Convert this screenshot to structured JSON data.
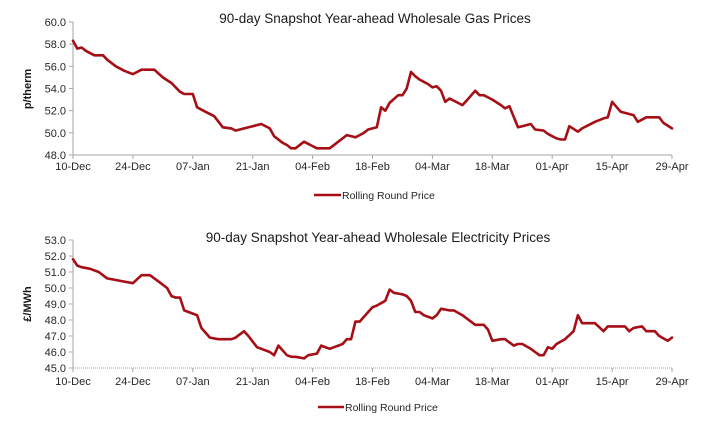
{
  "chart_data": [
    {
      "type": "line",
      "title": "90-day Snapshot Year-ahead Wholesale Gas Prices",
      "xlabel": "",
      "ylabel": "p/therm",
      "ylim": [
        48.0,
        60.0
      ],
      "yticks": [
        "48.0",
        "50.0",
        "52.0",
        "54.0",
        "56.0",
        "58.0",
        "60.0"
      ],
      "xticks": [
        "10-Dec",
        "24-Dec",
        "07-Jan",
        "21-Jan",
        "04-Feb",
        "18-Feb",
        "04-Mar",
        "18-Mar",
        "01-Apr",
        "15-Apr",
        "29-Apr"
      ],
      "x_range_days": [
        0,
        140
      ],
      "grid": false,
      "legend": "bottom",
      "series": [
        {
          "name": "Rolling Round Price",
          "color": "#a50f15",
          "x": [
            0,
            1,
            2,
            3,
            5,
            7,
            8,
            10,
            12,
            14,
            16,
            17,
            19,
            21,
            23,
            25,
            26,
            28,
            29,
            31,
            33,
            35,
            37,
            38,
            40,
            42,
            44,
            46,
            47,
            49,
            50,
            51,
            52,
            54,
            56,
            57,
            58,
            60,
            62,
            64,
            66,
            67,
            68,
            69,
            71,
            72,
            73,
            74,
            76,
            77,
            78,
            79,
            80,
            81,
            83,
            84,
            85,
            86,
            87,
            88,
            90,
            91,
            92,
            94,
            95,
            96,
            97,
            98,
            100,
            101,
            102,
            104,
            105,
            107,
            108,
            110,
            111,
            112,
            113,
            114,
            115,
            116,
            118,
            119,
            120,
            122,
            124,
            125,
            126,
            128,
            129,
            131,
            132,
            134,
            136,
            137,
            138,
            140
          ],
          "values": [
            58.3,
            57.6,
            57.7,
            57.4,
            57.0,
            57.0,
            56.6,
            56.0,
            55.6,
            55.3,
            55.7,
            55.7,
            55.7,
            55.0,
            54.5,
            53.7,
            53.5,
            53.5,
            52.3,
            51.9,
            51.5,
            50.5,
            50.4,
            50.2,
            50.4,
            50.6,
            50.8,
            50.4,
            49.7,
            49.1,
            48.9,
            48.6,
            48.6,
            49.2,
            48.8,
            48.6,
            48.6,
            48.6,
            49.2,
            49.8,
            49.6,
            49.8,
            50.0,
            50.3,
            50.5,
            52.3,
            52.0,
            52.7,
            53.4,
            53.4,
            54.0,
            55.5,
            55.1,
            54.8,
            54.4,
            54.1,
            54.2,
            53.8,
            52.8,
            53.1,
            52.7,
            52.5,
            52.9,
            53.8,
            53.4,
            53.4,
            53.2,
            53.0,
            52.5,
            52.2,
            52.4,
            50.5,
            50.6,
            50.8,
            50.3,
            50.2,
            49.9,
            49.7,
            49.5,
            49.4,
            49.4,
            50.6,
            50.1,
            50.4,
            50.6,
            51.0,
            51.3,
            51.4,
            52.8,
            51.9,
            51.8,
            51.6,
            51.0,
            51.4,
            51.4,
            51.4,
            50.9,
            50.4
          ]
        }
      ]
    },
    {
      "type": "line",
      "title": "90-day Snapshot Year-ahead Wholesale Electricity Prices",
      "xlabel": "",
      "ylabel": "£/MWh",
      "ylim": [
        45.0,
        53.0
      ],
      "yticks": [
        "45.0",
        "46.0",
        "47.0",
        "48.0",
        "49.0",
        "50.0",
        "51.0",
        "52.0",
        "53.0"
      ],
      "xticks": [
        "10-Dec",
        "24-Dec",
        "07-Jan",
        "21-Jan",
        "04-Feb",
        "18-Feb",
        "04-Mar",
        "18-Mar",
        "01-Apr",
        "15-Apr",
        "29-Apr"
      ],
      "x_range_days": [
        0,
        140
      ],
      "grid": false,
      "legend": "bottom",
      "series": [
        {
          "name": "Rolling Round Price",
          "color": "#a50f15",
          "x": [
            0,
            1,
            2,
            4,
            6,
            8,
            10,
            12,
            14,
            16,
            17,
            18,
            20,
            22,
            23,
            24,
            25,
            26,
            28,
            29,
            30,
            32,
            34,
            36,
            37,
            38,
            40,
            41,
            43,
            44,
            46,
            47,
            48,
            50,
            51,
            52,
            54,
            55,
            57,
            58,
            60,
            61,
            62,
            63,
            64,
            65,
            66,
            67,
            69,
            70,
            71,
            73,
            74,
            75,
            77,
            78,
            79,
            80,
            81,
            82,
            84,
            85,
            86,
            88,
            89,
            91,
            92,
            94,
            96,
            97,
            98,
            100,
            101,
            103,
            104,
            105,
            107,
            108,
            109,
            110,
            111,
            112,
            113,
            115,
            117,
            118,
            119,
            121,
            122,
            124,
            125,
            127,
            129,
            130,
            131,
            133,
            134,
            136,
            137,
            139,
            140
          ],
          "values": [
            51.8,
            51.4,
            51.3,
            51.2,
            51.0,
            50.6,
            50.5,
            50.4,
            50.3,
            50.8,
            50.8,
            50.8,
            50.4,
            50.0,
            49.5,
            49.4,
            49.4,
            48.6,
            48.4,
            48.3,
            47.5,
            46.9,
            46.8,
            46.8,
            46.8,
            46.9,
            47.3,
            47.0,
            46.3,
            46.2,
            46.0,
            45.8,
            46.4,
            45.8,
            45.7,
            45.7,
            45.6,
            45.8,
            45.9,
            46.4,
            46.2,
            46.3,
            46.4,
            46.5,
            46.8,
            46.8,
            47.9,
            47.9,
            48.5,
            48.8,
            48.9,
            49.2,
            49.9,
            49.7,
            49.6,
            49.5,
            49.2,
            48.5,
            48.5,
            48.3,
            48.1,
            48.3,
            48.7,
            48.6,
            48.6,
            48.3,
            48.1,
            47.7,
            47.7,
            47.4,
            46.7,
            46.8,
            46.8,
            46.4,
            46.5,
            46.5,
            46.2,
            46.0,
            45.8,
            45.8,
            46.3,
            46.2,
            46.5,
            46.8,
            47.3,
            48.3,
            47.8,
            47.8,
            47.8,
            47.3,
            47.6,
            47.6,
            47.6,
            47.3,
            47.5,
            47.6,
            47.3,
            47.3,
            47.0,
            46.7,
            46.9
          ]
        }
      ]
    }
  ]
}
